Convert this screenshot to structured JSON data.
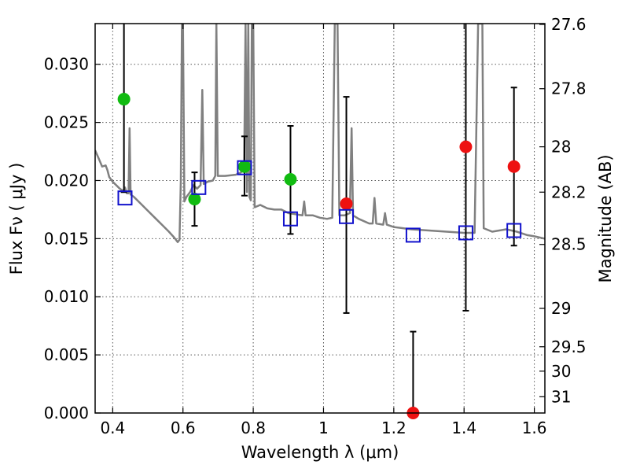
{
  "chart_data": {
    "type": "scatter",
    "title": "",
    "xlabel": "Wavelength  λ (μm)",
    "ylabel": "Flux  Fν  ( μJy )",
    "ylabel_right": "Magnitude (AB)",
    "xlim": [
      0.35,
      1.63
    ],
    "ylim": [
      0.0,
      0.0335
    ],
    "grid": true,
    "x_ticks": [
      {
        "value": 0.4,
        "label": "0.4"
      },
      {
        "value": 0.6,
        "label": "0.6"
      },
      {
        "value": 0.8,
        "label": "0.8"
      },
      {
        "value": 1.0,
        "label": "1"
      },
      {
        "value": 1.2,
        "label": "1.2"
      },
      {
        "value": 1.4,
        "label": "1.4"
      },
      {
        "value": 1.6,
        "label": "1.6"
      }
    ],
    "y_ticks": [
      {
        "value": 0.0,
        "label": "0.000"
      },
      {
        "value": 0.005,
        "label": "0.005"
      },
      {
        "value": 0.01,
        "label": "0.010"
      },
      {
        "value": 0.015,
        "label": "0.015"
      },
      {
        "value": 0.02,
        "label": "0.020"
      },
      {
        "value": 0.025,
        "label": "0.025"
      },
      {
        "value": 0.03,
        "label": "0.030"
      }
    ],
    "right_ticks": [
      {
        "flux": 0.0336,
        "label": "27.6"
      },
      {
        "flux": 0.0279,
        "label": "27.8"
      },
      {
        "flux": 0.0229,
        "label": "28"
      },
      {
        "flux": 0.019,
        "label": "28.2"
      },
      {
        "flux": 0.0145,
        "label": "28.5"
      },
      {
        "flux": 0.009,
        "label": "29"
      },
      {
        "flux": 0.0057,
        "label": "29.5"
      },
      {
        "flux": 0.0036,
        "label": "30"
      },
      {
        "flux": 0.0014,
        "label": "31"
      }
    ],
    "series": [
      {
        "marker": "circle",
        "color": "#11bb11",
        "points": [
          {
            "x": 0.432,
            "y": 0.027
          },
          {
            "x": 0.633,
            "y": 0.0184
          },
          {
            "x": 0.775,
            "y": 0.0212
          },
          {
            "x": 0.906,
            "y": 0.0201
          }
        ]
      },
      {
        "marker": "circle",
        "color": "#ee1111",
        "points": [
          {
            "x": 1.065,
            "y": 0.018
          },
          {
            "x": 1.255,
            "y": 0.0
          },
          {
            "x": 1.405,
            "y": 0.0229
          },
          {
            "x": 1.542,
            "y": 0.0212
          }
        ]
      },
      {
        "marker": "open-square",
        "color": "#1111cc",
        "points": [
          {
            "x": 0.435,
            "y": 0.0185
          },
          {
            "x": 0.645,
            "y": 0.0194
          },
          {
            "x": 0.775,
            "y": 0.0211
          },
          {
            "x": 0.906,
            "y": 0.0167
          },
          {
            "x": 1.065,
            "y": 0.0169
          },
          {
            "x": 1.255,
            "y": 0.0153
          },
          {
            "x": 1.405,
            "y": 0.0155
          },
          {
            "x": 1.542,
            "y": 0.0157
          }
        ]
      }
    ],
    "error_bars": [
      {
        "x": 0.432,
        "low": 0.019,
        "high": 0.034
      },
      {
        "x": 0.633,
        "low": 0.0161,
        "high": 0.0207
      },
      {
        "x": 0.775,
        "low": 0.0187,
        "high": 0.0238
      },
      {
        "x": 0.906,
        "low": 0.0154,
        "high": 0.0247
      },
      {
        "x": 1.065,
        "low": 0.0086,
        "high": 0.0272
      },
      {
        "x": 1.255,
        "low": 0.0,
        "high": 0.007
      },
      {
        "x": 1.405,
        "low": 0.0088,
        "high": 0.034
      },
      {
        "x": 1.542,
        "low": 0.0144,
        "high": 0.028
      }
    ],
    "model_spectrum": {
      "color": "#808080",
      "points": [
        [
          0.35,
          0.0226
        ],
        [
          0.36,
          0.0219
        ],
        [
          0.37,
          0.0212
        ],
        [
          0.38,
          0.0213
        ],
        [
          0.385,
          0.0209
        ],
        [
          0.39,
          0.0203
        ],
        [
          0.4,
          0.0199
        ],
        [
          0.41,
          0.0196
        ],
        [
          0.42,
          0.0193
        ],
        [
          0.43,
          0.0191
        ],
        [
          0.435,
          0.0194
        ],
        [
          0.44,
          0.0189
        ],
        [
          0.445,
          0.0189
        ],
        [
          0.448,
          0.0245
        ],
        [
          0.451,
          0.0188
        ],
        [
          0.46,
          0.0186
        ],
        [
          0.48,
          0.018
        ],
        [
          0.5,
          0.0174
        ],
        [
          0.52,
          0.0168
        ],
        [
          0.54,
          0.0162
        ],
        [
          0.56,
          0.0156
        ],
        [
          0.575,
          0.0151
        ],
        [
          0.585,
          0.0147
        ],
        [
          0.59,
          0.0149
        ],
        [
          0.594,
          0.02
        ],
        [
          0.597,
          0.0335
        ],
        [
          0.6,
          0.0335
        ],
        [
          0.604,
          0.0182
        ],
        [
          0.61,
          0.0186
        ],
        [
          0.62,
          0.019
        ],
        [
          0.63,
          0.0196
        ],
        [
          0.64,
          0.0193
        ],
        [
          0.65,
          0.0196
        ],
        [
          0.655,
          0.0278
        ],
        [
          0.659,
          0.0197
        ],
        [
          0.67,
          0.0199
        ],
        [
          0.685,
          0.02
        ],
        [
          0.692,
          0.0204
        ],
        [
          0.695,
          0.0335
        ],
        [
          0.699,
          0.0204
        ],
        [
          0.72,
          0.0204
        ],
        [
          0.75,
          0.0205
        ],
        [
          0.765,
          0.0207
        ],
        [
          0.774,
          0.021
        ],
        [
          0.778,
          0.0335
        ],
        [
          0.782,
          0.019
        ],
        [
          0.786,
          0.0335
        ],
        [
          0.789,
          0.0186
        ],
        [
          0.793,
          0.0183
        ],
        [
          0.796,
          0.0335
        ],
        [
          0.8,
          0.0335
        ],
        [
          0.804,
          0.0177
        ],
        [
          0.82,
          0.0179
        ],
        [
          0.84,
          0.0176
        ],
        [
          0.86,
          0.0175
        ],
        [
          0.88,
          0.0175
        ],
        [
          0.9,
          0.0172
        ],
        [
          0.92,
          0.0171
        ],
        [
          0.94,
          0.017
        ],
        [
          0.945,
          0.0182
        ],
        [
          0.949,
          0.017
        ],
        [
          0.97,
          0.017
        ],
        [
          0.99,
          0.0168
        ],
        [
          1.01,
          0.0167
        ],
        [
          1.025,
          0.0168
        ],
        [
          1.032,
          0.0335
        ],
        [
          1.04,
          0.0335
        ],
        [
          1.045,
          0.017
        ],
        [
          1.06,
          0.017
        ],
        [
          1.075,
          0.0172
        ],
        [
          1.08,
          0.0245
        ],
        [
          1.084,
          0.017
        ],
        [
          1.1,
          0.0167
        ],
        [
          1.13,
          0.0163
        ],
        [
          1.14,
          0.0163
        ],
        [
          1.145,
          0.0185
        ],
        [
          1.15,
          0.0163
        ],
        [
          1.17,
          0.0162
        ],
        [
          1.175,
          0.0172
        ],
        [
          1.18,
          0.0162
        ],
        [
          1.2,
          0.016
        ],
        [
          1.25,
          0.0158
        ],
        [
          1.3,
          0.0157
        ],
        [
          1.35,
          0.0156
        ],
        [
          1.4,
          0.0155
        ],
        [
          1.43,
          0.0155
        ],
        [
          1.44,
          0.0335
        ],
        [
          1.452,
          0.0335
        ],
        [
          1.456,
          0.0159
        ],
        [
          1.48,
          0.0156
        ],
        [
          1.5,
          0.0157
        ],
        [
          1.52,
          0.0158
        ],
        [
          1.55,
          0.0156
        ],
        [
          1.58,
          0.0153
        ],
        [
          1.6,
          0.0152
        ],
        [
          1.63,
          0.015
        ]
      ]
    }
  }
}
